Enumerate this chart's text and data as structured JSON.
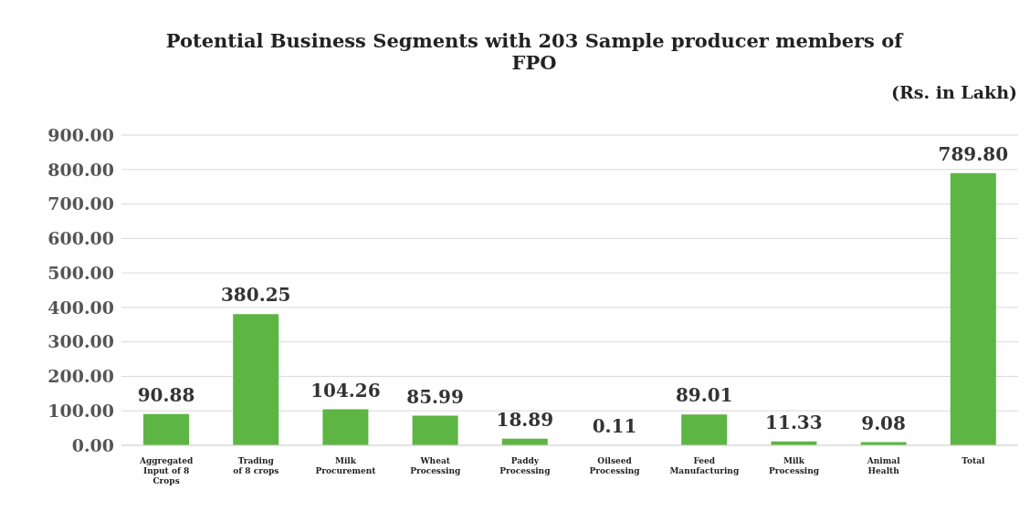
{
  "chart_data": {
    "type": "bar",
    "title": "Potential Business Segments with 203 Sample producer members of FPO",
    "subtitle": "(Rs. in Lakh)",
    "categories": [
      "Aggregated Input of 8 Crops",
      "Trading of 8 crops",
      "Milk Procurement",
      "Wheat Processing",
      "Paddy Processing",
      "Oilseed Processing",
      "Feed Manufacturing",
      "Milk Processing",
      "Animal Health",
      "Total"
    ],
    "values": [
      90.88,
      380.25,
      104.26,
      85.99,
      18.89,
      0.11,
      89.01,
      11.33,
      9.08,
      789.8
    ],
    "value_labels": [
      "90.88",
      "380.25",
      "104.26",
      "85.99",
      "18.89",
      "0.11",
      "89.01",
      "11.33",
      "9.08",
      "789.80"
    ],
    "color": "#5db543",
    "ylim": [
      0,
      900
    ],
    "yticks": [
      {
        "value": 0,
        "label": "0.00"
      },
      {
        "value": 100,
        "label": "100.00"
      },
      {
        "value": 200,
        "label": "200.00"
      },
      {
        "value": 300,
        "label": "300.00"
      },
      {
        "value": 400,
        "label": "400.00"
      },
      {
        "value": 500,
        "label": "500.00"
      },
      {
        "value": 600,
        "label": "600.00"
      },
      {
        "value": 700,
        "label": "700.00"
      },
      {
        "value": 800,
        "label": "800.00"
      },
      {
        "value": 900,
        "label": "900.00"
      }
    ],
    "grid": "y"
  }
}
